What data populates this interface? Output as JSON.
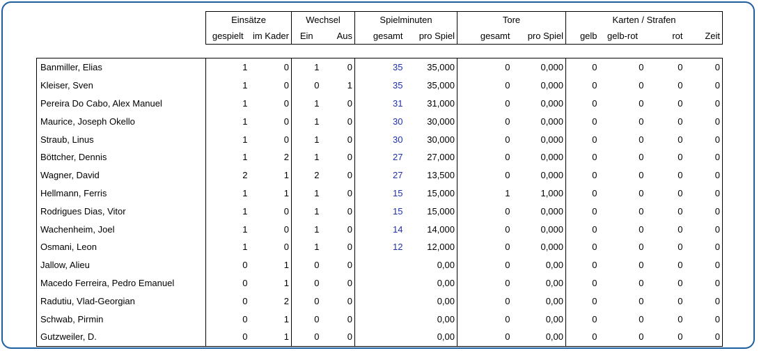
{
  "groups": {
    "einsaetze": "Einsätze",
    "wechsel": "Wechsel",
    "spielminuten": "Spielminuten",
    "tore": "Tore",
    "karten": "Karten / Strafen"
  },
  "columns": {
    "gespielt": "gespielt",
    "im_kader": "im Kader",
    "ein": "Ein",
    "aus": "Aus",
    "min_gesamt": "gesamt",
    "min_pro_spiel": "pro Spiel",
    "tore_gesamt": "gesamt",
    "tore_pro_spiel": "pro Spiel",
    "gelb": "gelb",
    "gelb_rot": "gelb-rot",
    "rot": "rot",
    "zeit": "Zeit"
  },
  "players": [
    {
      "name": "Banmiller, Elias",
      "gespielt": "1",
      "im_kader": "0",
      "ein": "1",
      "aus": "0",
      "min_gesamt": "35",
      "min_pro_spiel": "35,000",
      "tore_gesamt": "0",
      "tore_pro_spiel": "0,000",
      "gelb": "0",
      "gelb_rot": "0",
      "rot": "0",
      "zeit": "0"
    },
    {
      "name": "Kleiser, Sven",
      "gespielt": "1",
      "im_kader": "0",
      "ein": "0",
      "aus": "1",
      "min_gesamt": "35",
      "min_pro_spiel": "35,000",
      "tore_gesamt": "0",
      "tore_pro_spiel": "0,000",
      "gelb": "0",
      "gelb_rot": "0",
      "rot": "0",
      "zeit": "0"
    },
    {
      "name": "Pereira Do Cabo, Alex Manuel",
      "gespielt": "1",
      "im_kader": "0",
      "ein": "1",
      "aus": "0",
      "min_gesamt": "31",
      "min_pro_spiel": "31,000",
      "tore_gesamt": "0",
      "tore_pro_spiel": "0,000",
      "gelb": "0",
      "gelb_rot": "0",
      "rot": "0",
      "zeit": "0"
    },
    {
      "name": "Maurice, Joseph Okello",
      "gespielt": "1",
      "im_kader": "0",
      "ein": "1",
      "aus": "0",
      "min_gesamt": "30",
      "min_pro_spiel": "30,000",
      "tore_gesamt": "0",
      "tore_pro_spiel": "0,000",
      "gelb": "0",
      "gelb_rot": "0",
      "rot": "0",
      "zeit": "0"
    },
    {
      "name": "Straub, Linus",
      "gespielt": "1",
      "im_kader": "0",
      "ein": "1",
      "aus": "0",
      "min_gesamt": "30",
      "min_pro_spiel": "30,000",
      "tore_gesamt": "0",
      "tore_pro_spiel": "0,000",
      "gelb": "0",
      "gelb_rot": "0",
      "rot": "0",
      "zeit": "0"
    },
    {
      "name": "Böttcher, Dennis",
      "gespielt": "1",
      "im_kader": "2",
      "ein": "1",
      "aus": "0",
      "min_gesamt": "27",
      "min_pro_spiel": "27,000",
      "tore_gesamt": "0",
      "tore_pro_spiel": "0,000",
      "gelb": "0",
      "gelb_rot": "0",
      "rot": "0",
      "zeit": "0"
    },
    {
      "name": "Wagner, David",
      "gespielt": "2",
      "im_kader": "1",
      "ein": "2",
      "aus": "0",
      "min_gesamt": "27",
      "min_pro_spiel": "13,500",
      "tore_gesamt": "0",
      "tore_pro_spiel": "0,000",
      "gelb": "0",
      "gelb_rot": "0",
      "rot": "0",
      "zeit": "0"
    },
    {
      "name": "Hellmann, Ferris",
      "gespielt": "1",
      "im_kader": "1",
      "ein": "1",
      "aus": "0",
      "min_gesamt": "15",
      "min_pro_spiel": "15,000",
      "tore_gesamt": "1",
      "tore_pro_spiel": "1,000",
      "gelb": "0",
      "gelb_rot": "0",
      "rot": "0",
      "zeit": "0"
    },
    {
      "name": "Rodrigues Dias, Vitor",
      "gespielt": "1",
      "im_kader": "0",
      "ein": "1",
      "aus": "0",
      "min_gesamt": "15",
      "min_pro_spiel": "15,000",
      "tore_gesamt": "0",
      "tore_pro_spiel": "0,000",
      "gelb": "0",
      "gelb_rot": "0",
      "rot": "0",
      "zeit": "0"
    },
    {
      "name": "Wachenheim, Joel",
      "gespielt": "1",
      "im_kader": "0",
      "ein": "1",
      "aus": "0",
      "min_gesamt": "14",
      "min_pro_spiel": "14,000",
      "tore_gesamt": "0",
      "tore_pro_spiel": "0,000",
      "gelb": "0",
      "gelb_rot": "0",
      "rot": "0",
      "zeit": "0"
    },
    {
      "name": "Osmani, Leon",
      "gespielt": "1",
      "im_kader": "0",
      "ein": "1",
      "aus": "0",
      "min_gesamt": "12",
      "min_pro_spiel": "12,000",
      "tore_gesamt": "0",
      "tore_pro_spiel": "0,000",
      "gelb": "0",
      "gelb_rot": "0",
      "rot": "0",
      "zeit": "0"
    },
    {
      "name": "Jallow, Alieu",
      "gespielt": "0",
      "im_kader": "1",
      "ein": "0",
      "aus": "0",
      "min_gesamt": "",
      "min_pro_spiel": "0,00",
      "tore_gesamt": "0",
      "tore_pro_spiel": "0,00",
      "gelb": "0",
      "gelb_rot": "0",
      "rot": "0",
      "zeit": "0"
    },
    {
      "name": "Macedo Ferreira, Pedro Emanuel",
      "gespielt": "0",
      "im_kader": "1",
      "ein": "0",
      "aus": "0",
      "min_gesamt": "",
      "min_pro_spiel": "0,00",
      "tore_gesamt": "0",
      "tore_pro_spiel": "0,00",
      "gelb": "0",
      "gelb_rot": "0",
      "rot": "0",
      "zeit": "0"
    },
    {
      "name": "Radutiu, Vlad-Georgian",
      "gespielt": "0",
      "im_kader": "2",
      "ein": "0",
      "aus": "0",
      "min_gesamt": "",
      "min_pro_spiel": "0,00",
      "tore_gesamt": "0",
      "tore_pro_spiel": "0,00",
      "gelb": "0",
      "gelb_rot": "0",
      "rot": "0",
      "zeit": "0"
    },
    {
      "name": "Schwab, Pirmin",
      "gespielt": "0",
      "im_kader": "1",
      "ein": "0",
      "aus": "0",
      "min_gesamt": "",
      "min_pro_spiel": "0,00",
      "tore_gesamt": "0",
      "tore_pro_spiel": "0,00",
      "gelb": "0",
      "gelb_rot": "0",
      "rot": "0",
      "zeit": "0"
    },
    {
      "name": "Gutzweiler, D.",
      "gespielt": "0",
      "im_kader": "1",
      "ein": "0",
      "aus": "0",
      "min_gesamt": "",
      "min_pro_spiel": "0,00",
      "tore_gesamt": "0",
      "tore_pro_spiel": "0,00",
      "gelb": "0",
      "gelb_rot": "0",
      "rot": "0",
      "zeit": "0"
    }
  ],
  "colors": {
    "frame_border": "#1f5d9e",
    "minutes_text": "#1f2fa8"
  }
}
